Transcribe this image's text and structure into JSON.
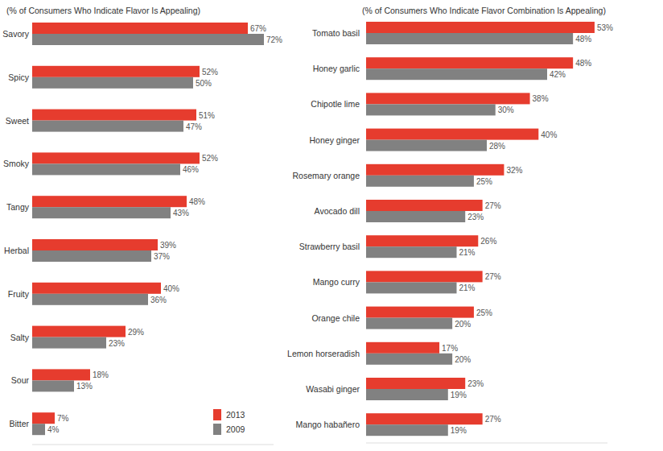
{
  "chart_data": [
    {
      "type": "bar",
      "orientation": "horizontal",
      "title": "(% of Consumers Who Indicate Flavor Is Appealing)",
      "categories": [
        "Savory",
        "Spicy",
        "Sweet",
        "Smoky",
        "Tangy",
        "Herbal",
        "Fruity",
        "Salty",
        "Sour",
        "Bitter"
      ],
      "series": [
        {
          "name": "2013",
          "color": "#e63c2e",
          "values": [
            67,
            52,
            51,
            52,
            48,
            39,
            40,
            29,
            18,
            7
          ],
          "value_labels": [
            "67%",
            "52%",
            "51%",
            "52%",
            "48%",
            "39%",
            "40%",
            "29%",
            "18%",
            "7%"
          ]
        },
        {
          "name": "2009",
          "color": "#818181",
          "values": [
            72,
            50,
            47,
            46,
            43,
            37,
            36,
            23,
            13,
            4
          ],
          "value_labels": [
            "72%",
            "50%",
            "47%",
            "46%",
            "43%",
            "37%",
            "36%",
            "23%",
            "13%",
            "4%"
          ]
        }
      ],
      "xlim": [
        0,
        75
      ],
      "tick_labels": false,
      "data_labels": true,
      "grid": false,
      "legend": "lower right"
    },
    {
      "type": "bar",
      "orientation": "horizontal",
      "title": "(% of Consumers Who Indicate Flavor Combination Is Appealing)",
      "categories": [
        "Tomato basil",
        "Honey garlic",
        "Chipotle lime",
        "Honey ginger",
        "Rosemary orange",
        "Avocado dill",
        "Strawberry basil",
        "Mango curry",
        "Orange chile",
        "Lemon horseradish",
        "Wasabi ginger",
        "Mango habañero"
      ],
      "series": [
        {
          "name": "2013",
          "color": "#e63c2e",
          "values": [
            53,
            48,
            38,
            40,
            32,
            27,
            26,
            27,
            25,
            17,
            23,
            27
          ],
          "value_labels": [
            "53%",
            "48%",
            "38%",
            "40%",
            "32%",
            "27%",
            "26%",
            "27%",
            "25%",
            "17%",
            "23%",
            "27%"
          ]
        },
        {
          "name": "2009",
          "color": "#818181",
          "values": [
            48,
            42,
            30,
            28,
            25,
            23,
            21,
            21,
            20,
            20,
            19,
            19
          ],
          "value_labels": [
            "48%",
            "42%",
            "30%",
            "28%",
            "25%",
            "23%",
            "21%",
            "21%",
            "20%",
            "20%",
            "19%",
            "19%"
          ]
        }
      ],
      "xlim": [
        0,
        56
      ],
      "tick_labels": false,
      "data_labels": true,
      "grid": false
    }
  ]
}
